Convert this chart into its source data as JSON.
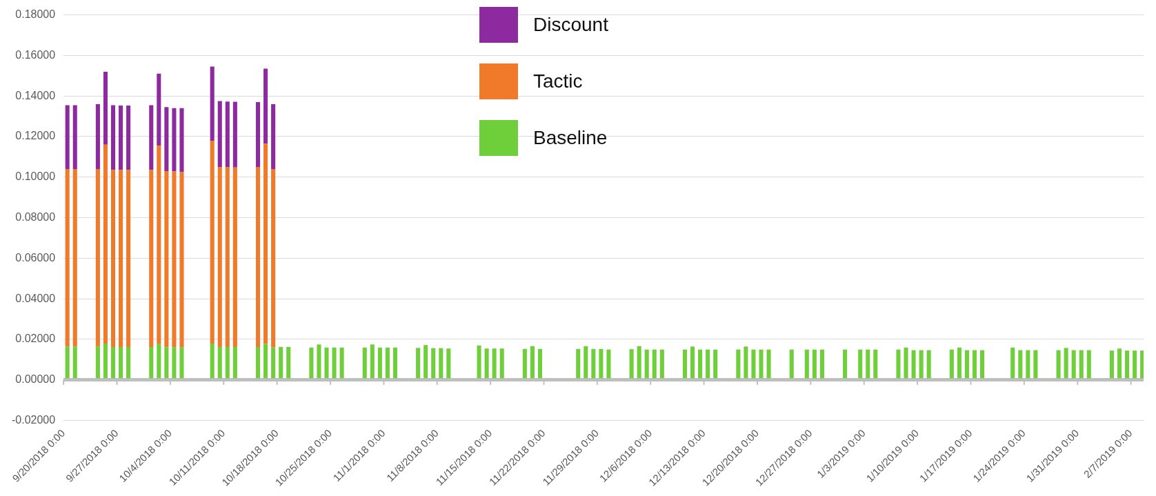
{
  "chart_data": {
    "type": "bar",
    "stacked": true,
    "legend": "top",
    "grid": "y",
    "x": [
      "2018-09-20T12:00",
      "2018-09-21T12:00",
      "2018-09-24T12:00",
      "2018-09-25T12:00",
      "2018-09-26T12:00",
      "2018-09-27T12:00",
      "2018-09-28T12:00",
      "2018-10-01T12:00",
      "2018-10-02T12:00",
      "2018-10-03T12:00",
      "2018-10-04T12:00",
      "2018-10-05T12:00",
      "2018-10-09T12:00",
      "2018-10-10T12:00",
      "2018-10-11T12:00",
      "2018-10-12T12:00",
      "2018-10-15T12:00",
      "2018-10-16T12:00",
      "2018-10-17T12:00",
      "2018-10-18T12:00",
      "2018-10-19T12:00",
      "2018-10-22T12:00",
      "2018-10-23T12:00",
      "2018-10-24T12:00",
      "2018-10-25T12:00",
      "2018-10-26T12:00",
      "2018-10-29T12:00",
      "2018-10-30T12:00",
      "2018-10-31T12:00",
      "2018-11-01T12:00",
      "2018-11-02T12:00",
      "2018-11-05T12:00",
      "2018-11-06T12:00",
      "2018-11-07T12:00",
      "2018-11-08T12:00",
      "2018-11-09T12:00",
      "2018-11-13T12:00",
      "2018-11-14T12:00",
      "2018-11-15T12:00",
      "2018-11-16T12:00",
      "2018-11-19T12:00",
      "2018-11-20T12:00",
      "2018-11-21T12:00",
      "2018-11-26T12:00",
      "2018-11-27T12:00",
      "2018-11-28T12:00",
      "2018-11-29T12:00",
      "2018-11-30T12:00",
      "2018-12-03T12:00",
      "2018-12-04T12:00",
      "2018-12-05T12:00",
      "2018-12-06T12:00",
      "2018-12-07T12:00",
      "2018-12-10T12:00",
      "2018-12-11T12:00",
      "2018-12-12T12:00",
      "2018-12-13T12:00",
      "2018-12-14T12:00",
      "2018-12-17T12:00",
      "2018-12-18T12:00",
      "2018-12-19T12:00",
      "2018-12-20T12:00",
      "2018-12-21T12:00",
      "2018-12-24T12:00",
      "2018-12-26T12:00",
      "2018-12-27T12:00",
      "2018-12-28T12:00",
      "2018-12-31T12:00",
      "2019-01-02T12:00",
      "2019-01-03T12:00",
      "2019-01-04T12:00",
      "2019-01-07T12:00",
      "2019-01-08T12:00",
      "2019-01-09T12:00",
      "2019-01-10T12:00",
      "2019-01-11T12:00",
      "2019-01-14T12:00",
      "2019-01-15T12:00",
      "2019-01-16T12:00",
      "2019-01-17T12:00",
      "2019-01-18T12:00",
      "2019-01-22T12:00",
      "2019-01-23T12:00",
      "2019-01-24T12:00",
      "2019-01-25T12:00",
      "2019-01-28T12:00",
      "2019-01-29T12:00",
      "2019-01-30T12:00",
      "2019-01-31T12:00",
      "2019-02-01T12:00",
      "2019-02-04T12:00",
      "2019-02-05T12:00",
      "2019-02-06T12:00",
      "2019-02-07T12:00",
      "2019-02-08T12:00"
    ],
    "series": [
      {
        "name": "Baseline",
        "color": "#6fcf3a",
        "values": [
          0.0165,
          0.0165,
          0.0165,
          0.018,
          0.0163,
          0.0163,
          0.0163,
          0.0163,
          0.018,
          0.0162,
          0.0162,
          0.0162,
          0.018,
          0.0163,
          0.0163,
          0.0163,
          0.0163,
          0.0178,
          0.016,
          0.0163,
          0.0163,
          0.016,
          0.0175,
          0.016,
          0.016,
          0.016,
          0.016,
          0.0175,
          0.016,
          0.016,
          0.016,
          0.0158,
          0.0172,
          0.0157,
          0.0157,
          0.0155,
          0.017,
          0.0155,
          0.0155,
          0.0155,
          0.0153,
          0.0167,
          0.0153,
          0.0153,
          0.0167,
          0.0153,
          0.0153,
          0.015,
          0.0152,
          0.0167,
          0.015,
          0.015,
          0.015,
          0.015,
          0.0165,
          0.015,
          0.015,
          0.015,
          0.015,
          0.0165,
          0.015,
          0.015,
          0.015,
          0.015,
          0.015,
          0.015,
          0.015,
          0.015,
          0.015,
          0.015,
          0.015,
          0.015,
          0.016,
          0.0147,
          0.0147,
          0.0147,
          0.015,
          0.016,
          0.0147,
          0.0147,
          0.0147,
          0.016,
          0.0147,
          0.0147,
          0.0147,
          0.0147,
          0.0158,
          0.0147,
          0.0147,
          0.0147,
          0.0145,
          0.0155,
          0.0145,
          0.0145,
          0.0145
        ]
      },
      {
        "name": "Tactic",
        "color": "#f07a2a",
        "x": [
          "2018-09-20T12:00",
          "2018-09-21T12:00",
          "2018-09-24T12:00",
          "2018-09-25T12:00",
          "2018-09-26T12:00",
          "2018-09-27T12:00",
          "2018-09-28T12:00",
          "2018-10-01T12:00",
          "2018-10-02T12:00",
          "2018-10-03T12:00",
          "2018-10-04T12:00",
          "2018-10-05T12:00",
          "2018-10-09T12:00",
          "2018-10-10T12:00",
          "2018-10-11T12:00",
          "2018-10-12T12:00",
          "2018-10-15T12:00",
          "2018-10-16T12:00",
          "2018-10-17T12:00"
        ],
        "values": [
          0.0875,
          0.0875,
          0.0875,
          0.098,
          0.0872,
          0.0872,
          0.0872,
          0.0872,
          0.0975,
          0.0868,
          0.0866,
          0.0863,
          0.1,
          0.0887,
          0.0887,
          0.0885,
          0.0887,
          0.0987,
          0.088
        ]
      },
      {
        "name": "Discount",
        "color": "#8e2aa0",
        "x": [
          "2018-09-20T12:00",
          "2018-09-21T12:00",
          "2018-09-24T12:00",
          "2018-09-25T12:00",
          "2018-09-26T12:00",
          "2018-09-27T12:00",
          "2018-09-28T12:00",
          "2018-10-01T12:00",
          "2018-10-02T12:00",
          "2018-10-03T12:00",
          "2018-10-04T12:00",
          "2018-10-05T12:00",
          "2018-10-09T12:00",
          "2018-10-10T12:00",
          "2018-10-11T12:00",
          "2018-10-12T12:00",
          "2018-10-15T12:00",
          "2018-10-16T12:00",
          "2018-10-17T12:00"
        ],
        "values": [
          0.0315,
          0.0315,
          0.032,
          0.036,
          0.032,
          0.0318,
          0.0318,
          0.032,
          0.0355,
          0.0315,
          0.0312,
          0.0315,
          0.0365,
          0.0325,
          0.0323,
          0.0324,
          0.032,
          0.037,
          0.032
        ]
      }
    ],
    "xlim": [
      "2018-09-20",
      "2019-02-08T16:00"
    ],
    "xticks": [
      {
        "value": "2018-09-20",
        "label": "9/20/2018 0:00"
      },
      {
        "value": "2018-09-27",
        "label": "9/27/2018 0:00"
      },
      {
        "value": "2018-10-04",
        "label": "10/4/2018 0:00"
      },
      {
        "value": "2018-10-11",
        "label": "10/11/2018 0:00"
      },
      {
        "value": "2018-10-18",
        "label": "10/18/2018 0:00"
      },
      {
        "value": "2018-10-25",
        "label": "10/25/2018 0:00"
      },
      {
        "value": "2018-11-01",
        "label": "11/1/2018 0:00"
      },
      {
        "value": "2018-11-08",
        "label": "11/8/2018 0:00"
      },
      {
        "value": "2018-11-15",
        "label": "11/15/2018 0:00"
      },
      {
        "value": "2018-11-22",
        "label": "11/22/2018 0:00"
      },
      {
        "value": "2018-11-29",
        "label": "11/29/2018 0:00"
      },
      {
        "value": "2018-12-06",
        "label": "12/6/2018 0:00"
      },
      {
        "value": "2018-12-13",
        "label": "12/13/2018 0:00"
      },
      {
        "value": "2018-12-20",
        "label": "12/20/2018 0:00"
      },
      {
        "value": "2018-12-27",
        "label": "12/27/2018 0:00"
      },
      {
        "value": "2019-01-03",
        "label": "1/3/2019 0:00"
      },
      {
        "value": "2019-01-10",
        "label": "1/10/2019 0:00"
      },
      {
        "value": "2019-01-17",
        "label": "1/17/2019 0:00"
      },
      {
        "value": "2019-01-24",
        "label": "1/24/2019 0:00"
      },
      {
        "value": "2019-01-31",
        "label": "1/31/2019 0:00"
      },
      {
        "value": "2019-02-07",
        "label": "2/7/2019 0:00"
      }
    ],
    "ylim": [
      -0.02,
      0.18
    ],
    "yticks": [
      {
        "value": -0.02,
        "label": "-0.02000"
      },
      {
        "value": 0,
        "label": "0.00000"
      },
      {
        "value": 0.02,
        "label": "0.02000"
      },
      {
        "value": 0.04,
        "label": "0.04000"
      },
      {
        "value": 0.06,
        "label": "0.06000"
      },
      {
        "value": 0.08,
        "label": "0.08000"
      },
      {
        "value": 0.1,
        "label": "0.10000"
      },
      {
        "value": 0.12,
        "label": "0.12000"
      },
      {
        "value": 0.14,
        "label": "0.14000"
      },
      {
        "value": 0.16,
        "label": "0.16000"
      },
      {
        "value": 0.18,
        "label": "0.18000"
      }
    ]
  }
}
